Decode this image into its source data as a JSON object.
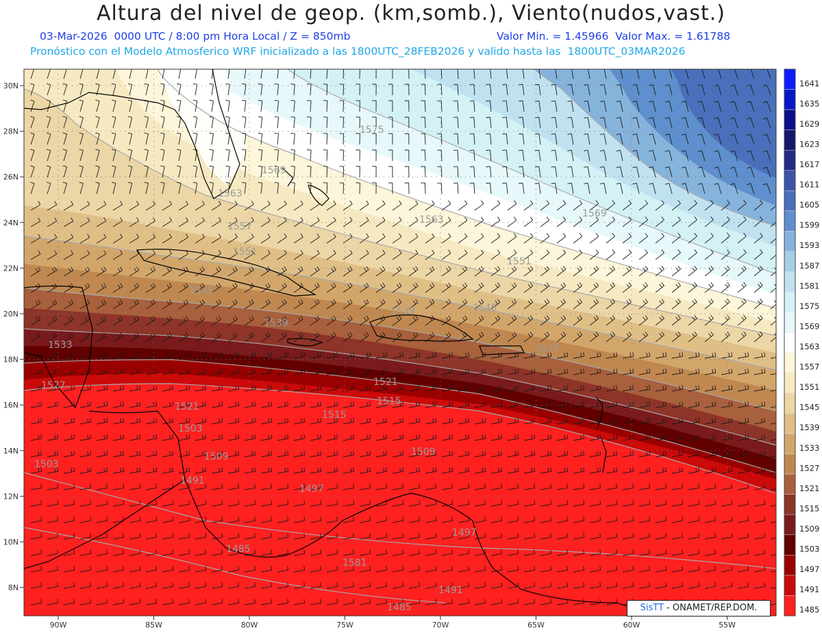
{
  "title": "Altura del nivel de geop. (km,somb.), Viento(nudos,vast.)",
  "subtitle_left": "03-Mar-2026  0000 UTC / 8:00 pm Hora Local / Z = 850mb",
  "subtitle_right": "Valor Min. = 1.45966  Valor Max. = 1.61788",
  "subtitle_model": "Pronóstico con el Modelo Atmosferico WRF inicializado a las 1800UTC_28FEB2026 y valido hasta las  1800UTC_03MAR2026",
  "credit": {
    "prefix": "SisTT",
    "text": " - ONAMET/REP.DOM."
  },
  "axes": {
    "lon_labels": [
      "90W",
      "85W",
      "80W",
      "75W",
      "70W",
      "65W",
      "60W",
      "55W"
    ],
    "lat_labels": [
      "30N",
      "28N",
      "26N",
      "24N",
      "22N",
      "20N",
      "18N",
      "16N",
      "14N",
      "12N",
      "10N",
      "8N"
    ]
  },
  "colorbar": {
    "levels": [
      "1641",
      "1635",
      "1629",
      "1623",
      "1617",
      "1611",
      "1605",
      "1599",
      "1593",
      "1587",
      "1581",
      "1575",
      "1569",
      "1563",
      "1557",
      "1551",
      "1545",
      "1539",
      "1533",
      "1527",
      "1521",
      "1515",
      "1509",
      "1503",
      "1497",
      "1491",
      "1485"
    ],
    "colors": [
      "#0b1dff",
      "#0a17c8",
      "#0b0f8a",
      "#14176b",
      "#242a86",
      "#3a55a8",
      "#4a70bc",
      "#5f8fcc",
      "#86b3dc",
      "#a6cee8",
      "#c0e2f0",
      "#d4f1f5",
      "#e7f8fa",
      "#ffffff",
      "#fdf6da",
      "#f6e9c2",
      "#ecd6a6",
      "#e0bf87",
      "#d2a66b",
      "#c08850",
      "#a9603c",
      "#8e3428",
      "#7a1a1c",
      "#620000",
      "#9b0000",
      "#cc0a0a",
      "#ff2020"
    ]
  },
  "contour_labels": [
    "1575",
    "1569",
    "1563",
    "1557",
    "1551",
    "1545",
    "1539",
    "1533",
    "1527",
    "1521",
    "1515",
    "1509",
    "1503",
    "1497",
    "1491",
    "1485",
    "1581",
    "1569",
    "1563",
    "1551",
    "1545",
    "1539",
    "1527",
    "1521",
    "1515",
    "1509",
    "1503",
    "1497",
    "1491",
    "1485"
  ]
}
